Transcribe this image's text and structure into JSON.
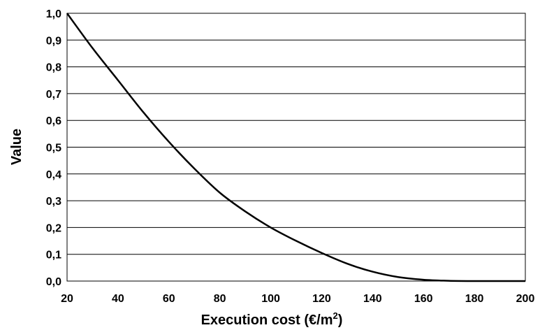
{
  "chart_data": {
    "type": "line",
    "title": "",
    "xlabel": "Execution cost (€/m",
    "xlabel_sup": "2",
    "xlabel_end": ")",
    "ylabel": "Value",
    "xlim": [
      20,
      200
    ],
    "ylim": [
      0,
      1
    ],
    "x_ticks": [
      "20",
      "40",
      "60",
      "80",
      "100",
      "120",
      "140",
      "160",
      "180",
      "200"
    ],
    "y_ticks": [
      "0,0",
      "0,1",
      "0,2",
      "0,3",
      "0,4",
      "0,5",
      "0,6",
      "0,7",
      "0,8",
      "0,9",
      "1,0"
    ],
    "grid": "horizontal",
    "legend": "none",
    "series": [
      {
        "x": [
          20,
          30,
          40,
          50,
          60,
          70,
          80,
          90,
          100,
          110,
          120,
          130,
          140,
          150,
          160,
          170,
          180,
          190,
          200
        ],
        "y": [
          1.0,
          0.87,
          0.75,
          0.63,
          0.52,
          0.42,
          0.33,
          0.26,
          0.2,
          0.15,
          0.105,
          0.065,
          0.035,
          0.015,
          0.005,
          0.001,
          0.0,
          0.0,
          0.0
        ],
        "color": "#000000"
      }
    ]
  }
}
